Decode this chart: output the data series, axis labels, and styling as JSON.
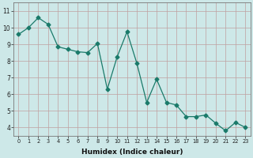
{
  "x": [
    0,
    1,
    2,
    3,
    4,
    5,
    6,
    7,
    8,
    9,
    10,
    11,
    12,
    13,
    14,
    15,
    16,
    17,
    18,
    19,
    20,
    21,
    22,
    23
  ],
  "y": [
    9.6,
    10.0,
    10.6,
    10.2,
    8.85,
    8.7,
    8.55,
    8.5,
    9.05,
    6.3,
    8.25,
    9.75,
    7.85,
    5.5,
    6.9,
    5.5,
    5.35,
    4.65,
    4.65,
    4.75,
    4.25,
    3.8,
    4.3,
    4.0
  ],
  "xlabel": "Humidex (Indice chaleur)",
  "line_color": "#1a7a6a",
  "marker": "D",
  "marker_size": 2.5,
  "bg_color": "#cde8e8",
  "grid_color": "#c0a0a0",
  "ylim": [
    3.5,
    11.5
  ],
  "xlim": [
    -0.5,
    23.5
  ],
  "yticks": [
    4,
    5,
    6,
    7,
    8,
    9,
    10,
    11
  ],
  "xticks": [
    0,
    1,
    2,
    3,
    4,
    5,
    6,
    7,
    8,
    9,
    10,
    11,
    12,
    13,
    14,
    15,
    16,
    17,
    18,
    19,
    20,
    21,
    22,
    23
  ]
}
